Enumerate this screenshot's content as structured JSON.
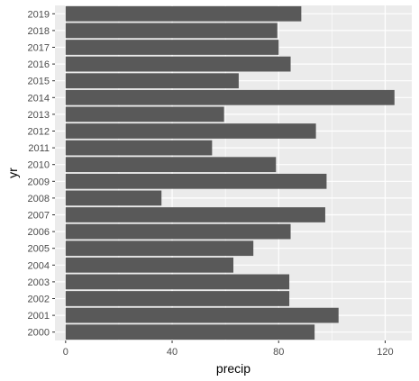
{
  "chart_data": {
    "type": "bar",
    "orientation": "horizontal",
    "xlabel": "precip",
    "ylabel": "yr",
    "categories": [
      "2000",
      "2001",
      "2002",
      "2003",
      "2004",
      "2005",
      "2006",
      "2007",
      "2008",
      "2009",
      "2010",
      "2011",
      "2012",
      "2013",
      "2014",
      "2015",
      "2016",
      "2017",
      "2018",
      "2019"
    ],
    "values": [
      93.5,
      102.5,
      84,
      84,
      63,
      70.5,
      84.5,
      97.5,
      36,
      98,
      79,
      55,
      94,
      59.5,
      123.5,
      65,
      84.5,
      80,
      79.5,
      88.5
    ],
    "xlim": [
      -4,
      130
    ],
    "xticks": [
      0,
      40,
      80,
      120
    ],
    "xtick_labels": [
      "0",
      "40",
      "80",
      "120"
    ],
    "grid": true,
    "legend": "none",
    "colors": {
      "panel": "#ebebeb",
      "grid": "#ffffff",
      "bar": "#595959",
      "tick_text": "#4d4d4d",
      "tick_mark": "#333333"
    }
  }
}
